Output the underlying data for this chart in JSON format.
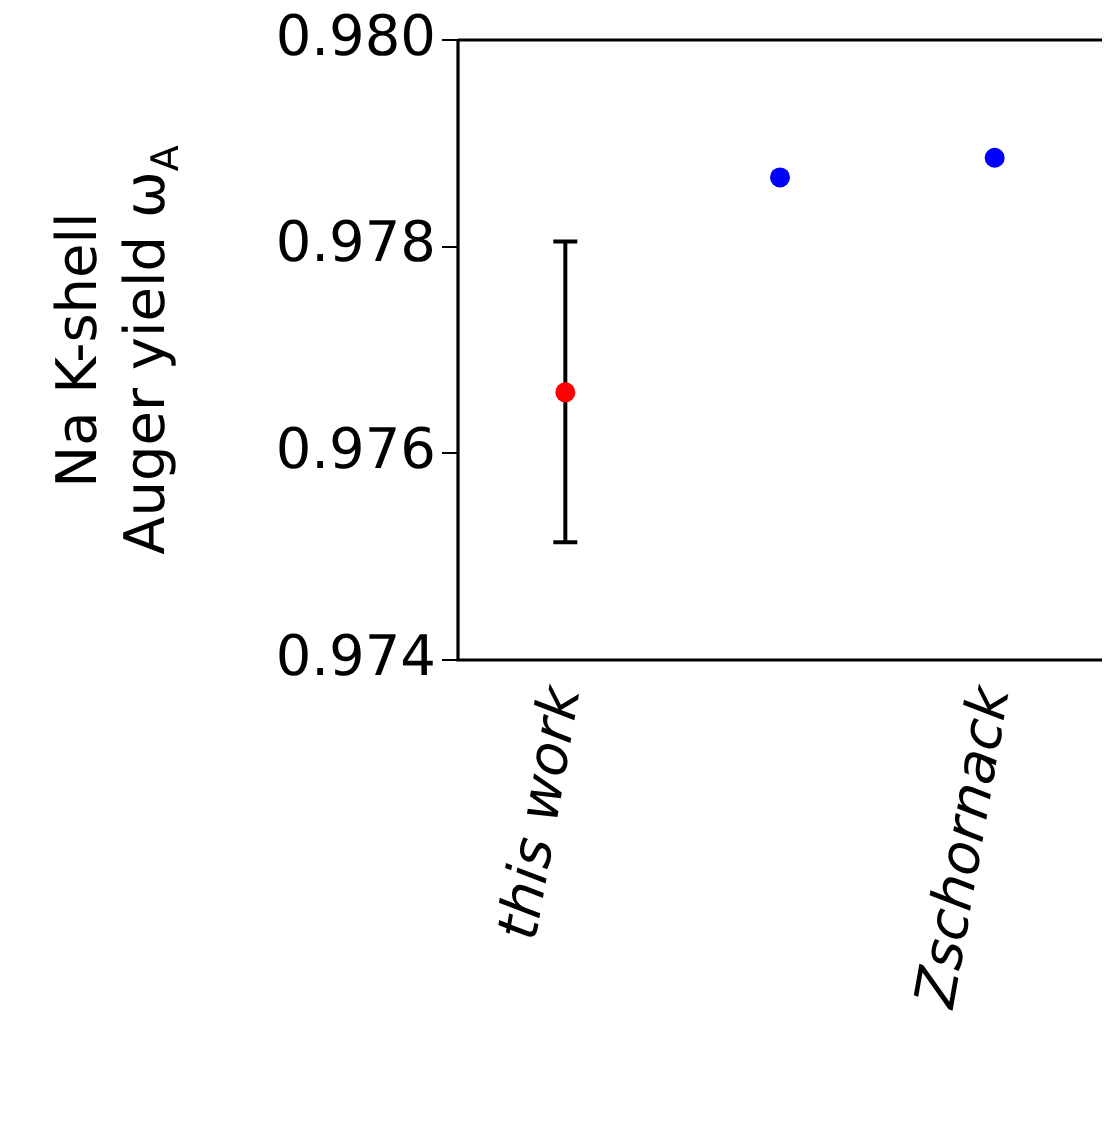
{
  "chart_data": {
    "type": "scatter",
    "ylabel": "Na K-shell\nAuger yield ω$_{A}$",
    "categories": [
      "this work",
      null,
      "Zschornack"
    ],
    "series": [
      {
        "colors": [
          "#ff0000",
          "#0000ff",
          "#0000ff"
        ],
        "values": [
          0.97659,
          0.97867,
          0.97886
        ],
        "errors": [
          [
            0.97514,
            0.97805
          ],
          null,
          null
        ]
      }
    ],
    "ylim": [
      0.974,
      0.98
    ],
    "yticks": [
      {
        "value": 0.974,
        "label": "0.974"
      },
      {
        "value": 0.976,
        "label": "0.976"
      },
      {
        "value": 0.978,
        "label": "0.978"
      },
      {
        "value": 0.98,
        "label": "0.980"
      }
    ],
    "grid": false,
    "legend": false,
    "marker": "circle"
  }
}
